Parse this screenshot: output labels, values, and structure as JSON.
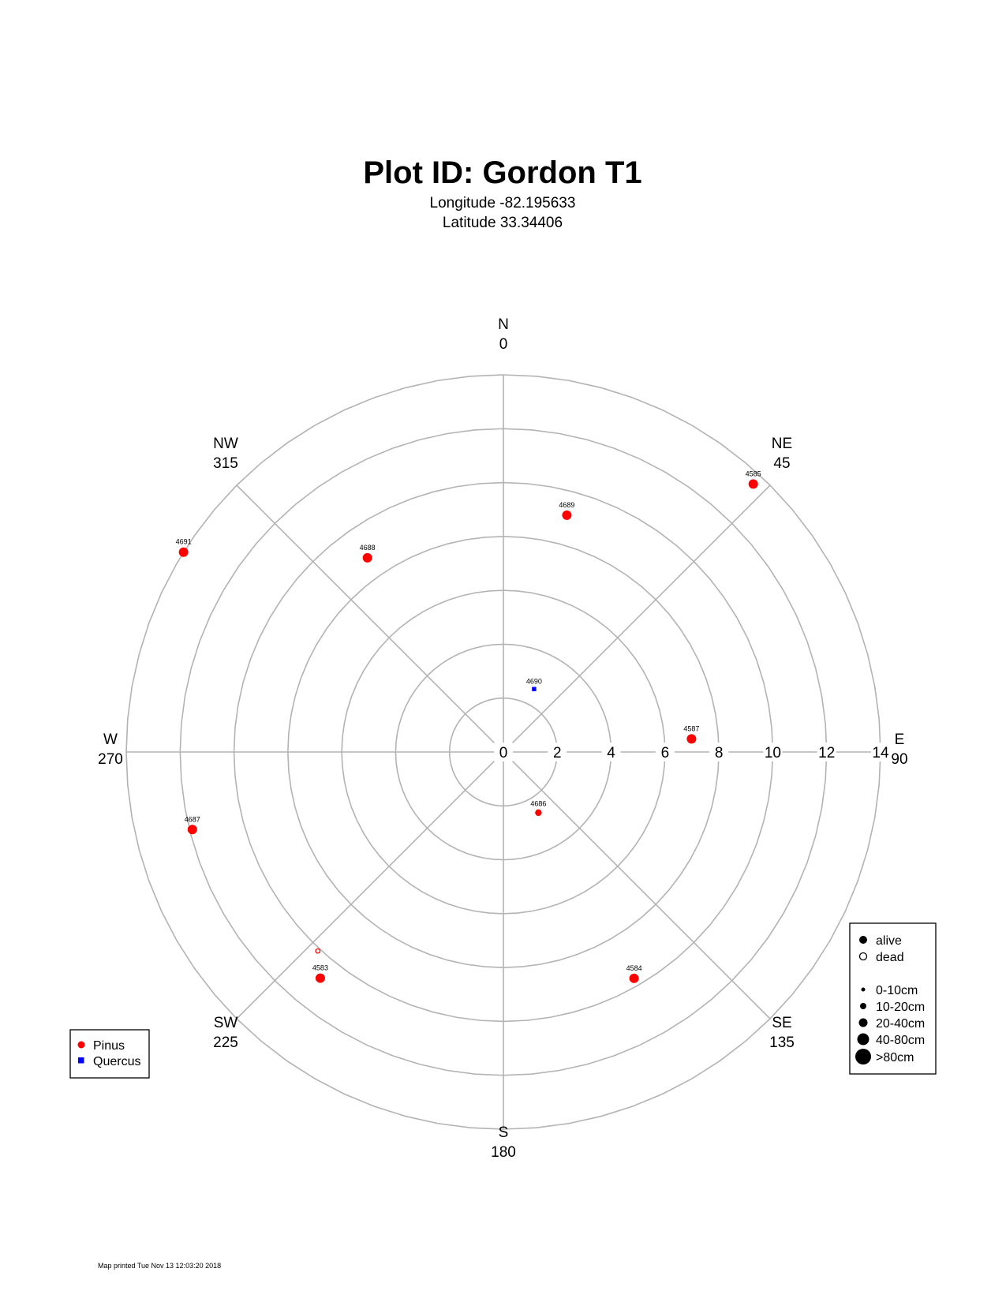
{
  "chart_data": {
    "type": "scatter",
    "coordinate_system": "polar",
    "title": "Plot ID:  Gordon T1",
    "subtitle_lines": [
      "Longitude -82.195633",
      "Latitude 33.34406"
    ],
    "radial_ticks": [
      0,
      2,
      4,
      6,
      8,
      10,
      12,
      14
    ],
    "radial_max": 14,
    "rings": [
      2,
      4,
      6,
      8,
      10,
      12,
      14
    ],
    "grid": true,
    "directions": [
      {
        "name": "N",
        "deg": "0",
        "angle": 0
      },
      {
        "name": "NE",
        "deg": "45",
        "angle": 45
      },
      {
        "name": "E",
        "deg": "90",
        "angle": 90
      },
      {
        "name": "SE",
        "deg": "135",
        "angle": 135
      },
      {
        "name": "S",
        "deg": "180",
        "angle": 180
      },
      {
        "name": "SW",
        "deg": "225",
        "angle": 225
      },
      {
        "name": "W",
        "deg": "270",
        "angle": 270
      },
      {
        "name": "NW",
        "deg": "315",
        "angle": 315
      }
    ],
    "series": [
      {
        "name": "Pinus",
        "color": "#ff0000",
        "marker": "circle"
      },
      {
        "name": "Quercus",
        "color": "#0000ff",
        "marker": "square"
      }
    ],
    "trees": [
      {
        "id": "4689",
        "species": "Pinus",
        "azimuth": 15,
        "distance": 9.1,
        "size_class": 3,
        "status": "alive"
      },
      {
        "id": "4585",
        "species": "Pinus",
        "azimuth": 43,
        "distance": 13.6,
        "size_class": 3,
        "status": "alive"
      },
      {
        "id": "4688",
        "species": "Pinus",
        "azimuth": 325,
        "distance": 8.8,
        "size_class": 3,
        "status": "alive"
      },
      {
        "id": "4691",
        "species": "Pinus",
        "azimuth": 302,
        "distance": 14.0,
        "size_class": 3,
        "status": "alive"
      },
      {
        "id": "4690",
        "species": "Quercus",
        "azimuth": 26,
        "distance": 2.6,
        "size_class": 1,
        "status": "alive"
      },
      {
        "id": "4587",
        "species": "Pinus",
        "azimuth": 86,
        "distance": 7.0,
        "size_class": 3,
        "status": "alive"
      },
      {
        "id": "4686",
        "species": "Pinus",
        "azimuth": 150,
        "distance": 2.6,
        "size_class": 2,
        "status": "alive"
      },
      {
        "id": "4687",
        "species": "Pinus",
        "azimuth": 256,
        "distance": 11.9,
        "size_class": 3,
        "status": "alive"
      },
      {
        "id": "4583",
        "species": "Pinus",
        "azimuth": 219,
        "distance": 10.8,
        "size_class": 3,
        "status": "alive"
      },
      {
        "id": "",
        "species": "Pinus",
        "azimuth": 223,
        "distance": 10.1,
        "size_class": 1,
        "status": "dead"
      },
      {
        "id": "4584",
        "species": "Pinus",
        "azimuth": 150,
        "distance": 9.7,
        "size_class": 3,
        "status": "alive"
      }
    ],
    "legend_species": {
      "position": "bottom-left",
      "entries": [
        "Pinus",
        "Quercus"
      ]
    },
    "legend_status": {
      "position": "bottom-right",
      "status_entries": [
        "alive",
        "dead"
      ],
      "size_entries": [
        "0-10cm",
        "10-20cm",
        "20-40cm",
        "40-80cm",
        ">80cm"
      ]
    },
    "footer": "Map printed Tue Nov 13 12:03:20 2018"
  }
}
